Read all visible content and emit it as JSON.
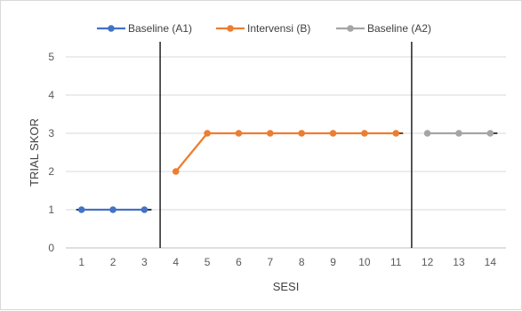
{
  "chart_data": {
    "type": "line",
    "xlabel": "SESI",
    "ylabel": "TRIAL SKOR",
    "ylim": [
      0,
      5
    ],
    "yticks": [
      "0",
      "1",
      "2",
      "3",
      "4",
      "5"
    ],
    "categories": [
      "1",
      "2",
      "3",
      "4",
      "5",
      "6",
      "7",
      "8",
      "9",
      "10",
      "11",
      "12",
      "13",
      "14"
    ],
    "grid": "horizontal",
    "legend_position": "top",
    "phase_change_lines_after_session": [
      3,
      11
    ],
    "series": [
      {
        "name": "Baseline (A1)",
        "color": "#4472c4",
        "x": [
          1,
          2,
          3
        ],
        "values": [
          1,
          1,
          1
        ],
        "trend_color": "#1f3864"
      },
      {
        "name": "Intervensi (B)",
        "color": "#ed7d31",
        "x": [
          4,
          5,
          6,
          7,
          8,
          9,
          10,
          11
        ],
        "values": [
          2,
          3,
          3,
          3,
          3,
          3,
          3,
          3
        ],
        "trend_color": "#843c0c"
      },
      {
        "name": "Baseline (A2)",
        "color": "#a5a5a5",
        "x": [
          12,
          13,
          14
        ],
        "values": [
          3,
          3,
          3
        ],
        "trend_color": "#404040"
      }
    ]
  }
}
